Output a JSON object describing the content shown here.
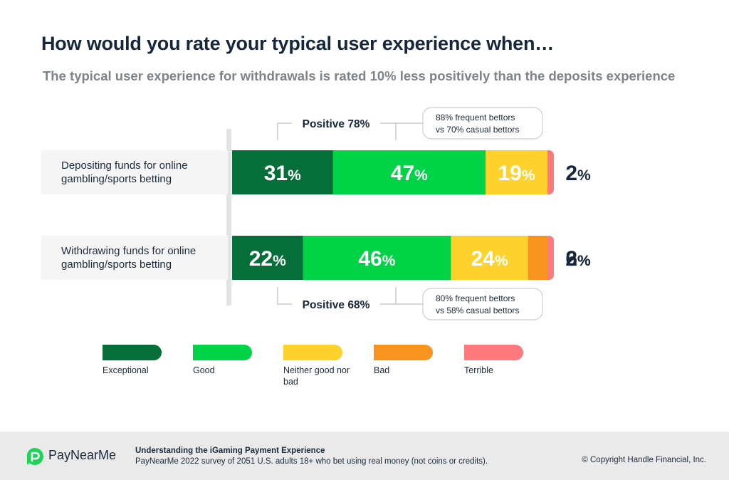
{
  "chart_data": {
    "type": "bar",
    "orientation": "horizontal",
    "stacked": true,
    "title": "How would you rate your typical user experience when…",
    "subtitle": "The typical user experience for withdrawals is rated 10% less positively than the deposits experience",
    "categories": [
      "Depositing funds for online gambling/sports betting",
      "Withdrawing funds for online gambling/sports betting"
    ],
    "series": [
      {
        "name": "Exceptional",
        "color": "#066e38",
        "values": [
          31,
          22
        ]
      },
      {
        "name": "Good",
        "color": "#00d345",
        "values": [
          47,
          46
        ]
      },
      {
        "name": "Neither good nor bad",
        "color": "#fdd22d",
        "values": [
          19,
          24
        ]
      },
      {
        "name": "Bad",
        "color": "#f8931f",
        "values": [
          0,
          6
        ]
      },
      {
        "name": "Terrible",
        "color": "#fe7a7f",
        "values": [
          2,
          2
        ]
      }
    ],
    "value_suffix": "%",
    "annotations": [
      {
        "label": "Positive 78%",
        "note_line1": "88% frequent bettors",
        "note_line2": "vs 70% casual bettors",
        "position": "above"
      },
      {
        "label": "Positive 68%",
        "note_line1": "80% frequent bettors",
        "note_line2": "vs 58% casual bettors",
        "position": "below"
      }
    ],
    "legend_position": "bottom",
    "grid": false
  },
  "footer": {
    "brand": "PayNearMe",
    "report_title": "Understanding the iGaming Payment Experience",
    "source": "PayNearMe 2022 survey of 2051 U.S. adults 18+ who bet using real money (not coins or credits).",
    "copyright": "© Copyright Handle Financial, Inc."
  },
  "colors": {
    "title": "#16263b",
    "subtitle": "#7e8388",
    "brand_green": "#1fd35a",
    "footer_bg": "#eaeaea"
  }
}
